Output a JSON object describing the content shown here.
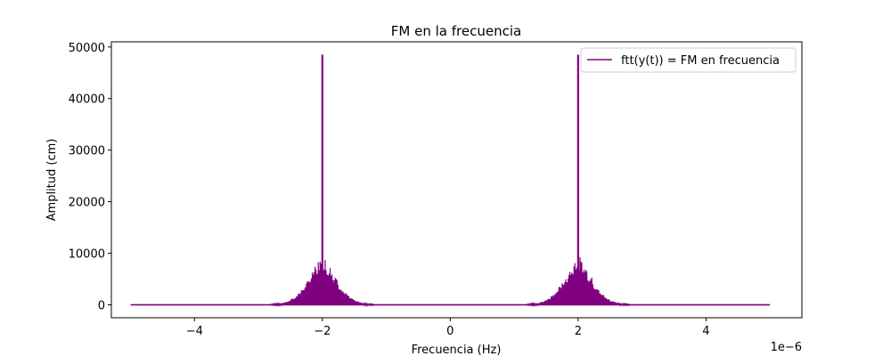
{
  "chart_data": {
    "type": "line",
    "title": "FM en la frecuencia",
    "xlabel": "Frecuencia (Hz)",
    "ylabel": "Amplitud (cm)",
    "x_offset_text": "1e−6",
    "xlim": [
      -5.3e-06,
      5.5e-06
    ],
    "ylim": [
      -2500,
      51000
    ],
    "xticks": [
      -4e-06,
      -2e-06,
      0,
      2e-06,
      4e-06
    ],
    "xtick_labels": [
      "−4",
      "−2",
      "0",
      "2",
      "4"
    ],
    "yticks": [
      0,
      10000,
      20000,
      30000,
      40000,
      50000
    ],
    "ytick_labels": [
      "0",
      "10000",
      "20000",
      "30000",
      "40000",
      "50000"
    ],
    "grid": false,
    "legend_position": "top-right",
    "series": [
      {
        "name": "ftt(y(t)) = FM en frecuencia",
        "color": "#800080",
        "x_range": [
          -5e-06,
          5e-06
        ],
        "peaks": [
          {
            "x": -2e-06,
            "y": 48500
          },
          {
            "x": 2e-06,
            "y": 48500
          }
        ],
        "sideband_peak": 9500,
        "sideband_halfwidth": 8e-07
      }
    ]
  }
}
